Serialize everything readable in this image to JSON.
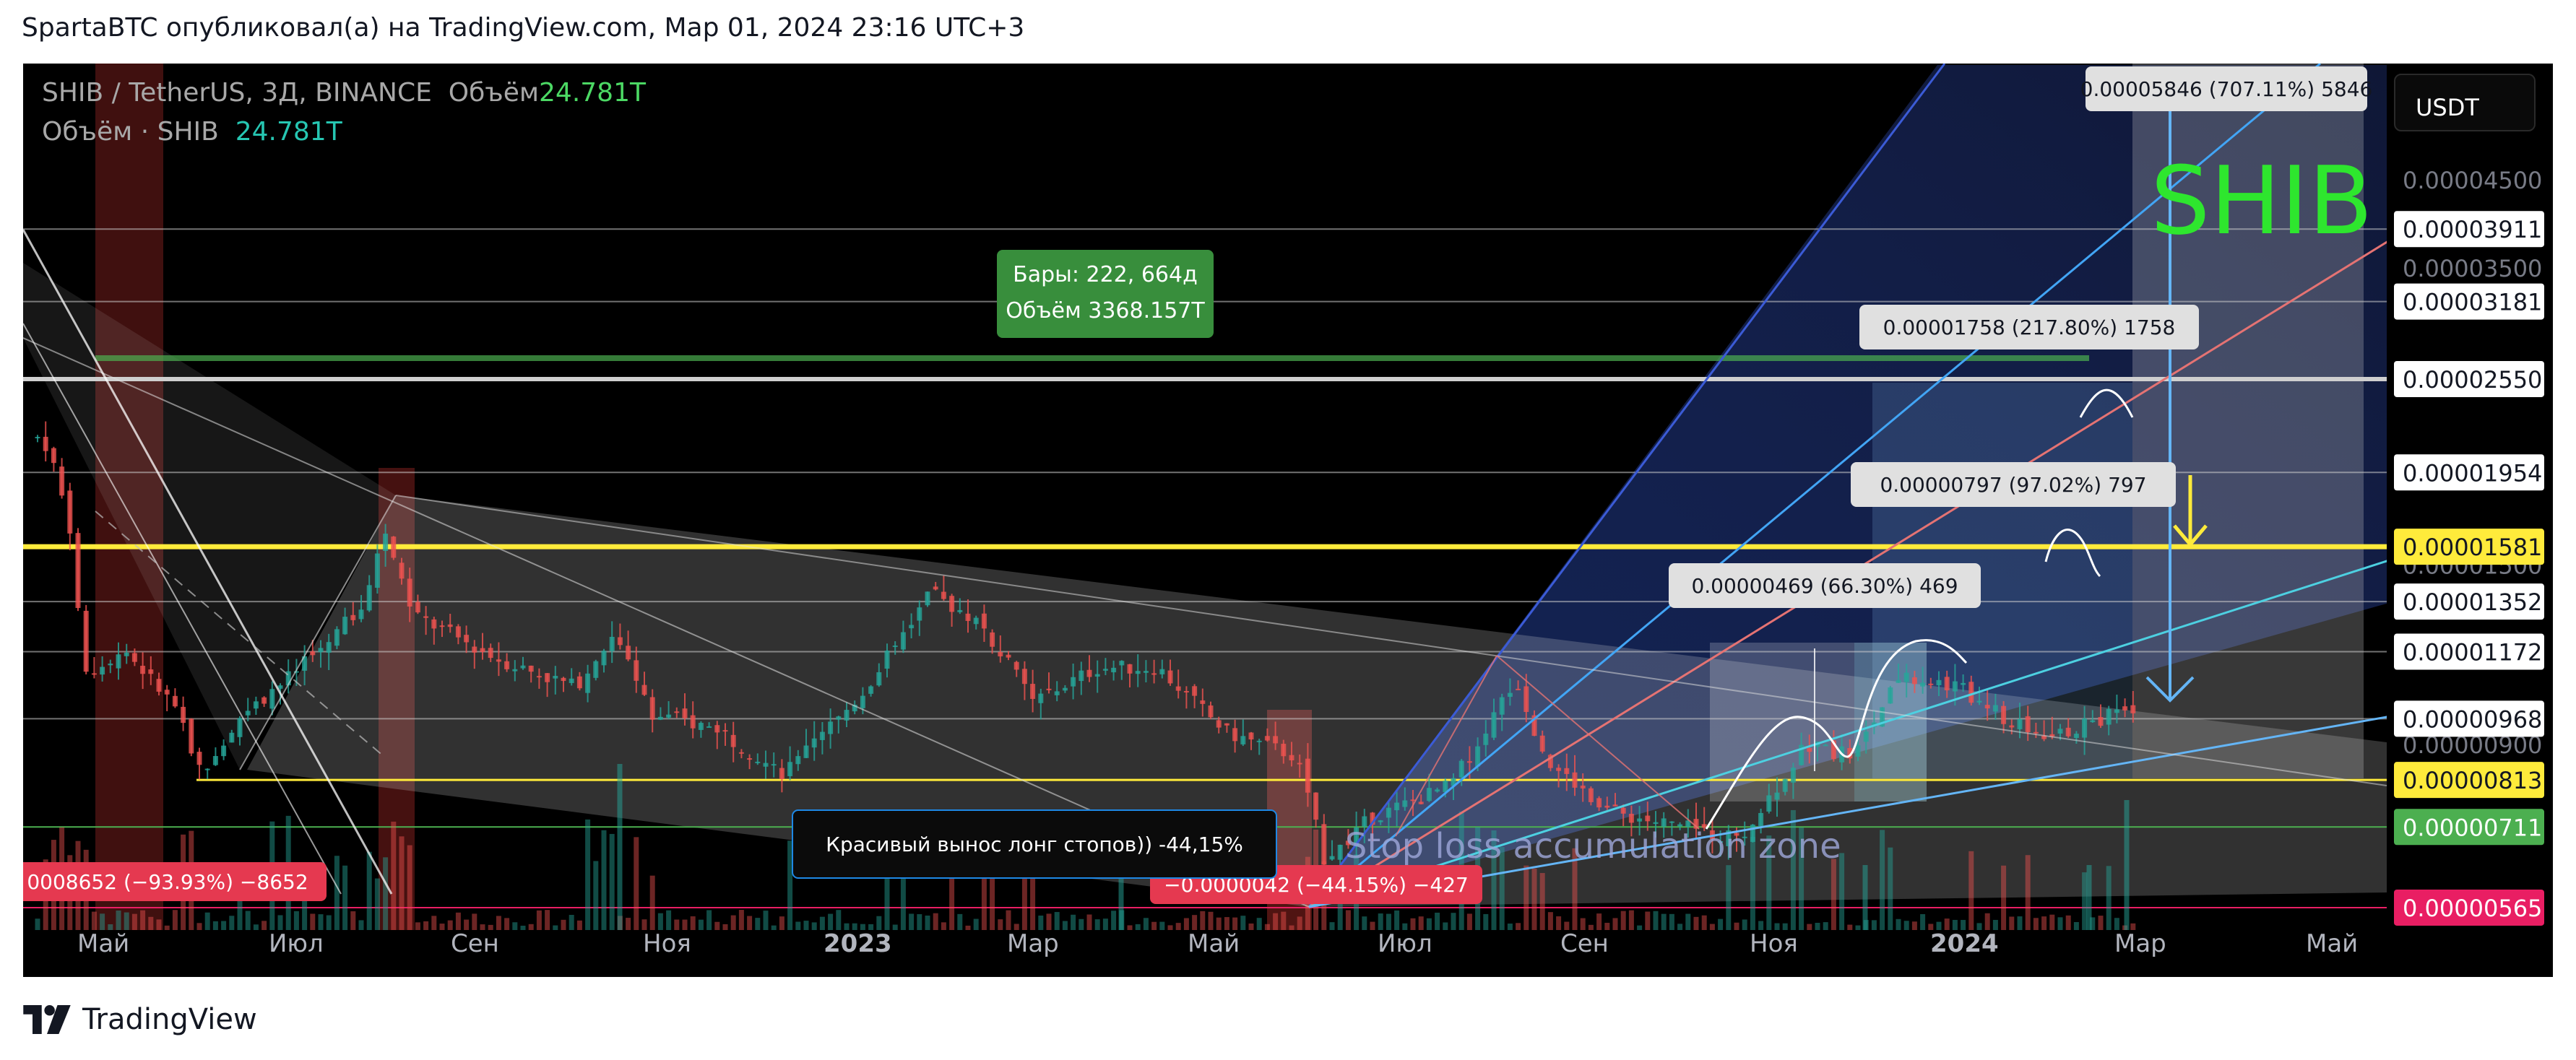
{
  "header": {
    "caption": "SpartaBTC опубликовал(а) на TradingView.com, Мар 01, 2024 23:16 UTC+3"
  },
  "legend": {
    "symbol": "SHIB / TetherUS, 3Д, BINANCE",
    "volume_label": "Объём",
    "volume_value": "24.781T",
    "line2_label": "Объём · SHIB",
    "line2_value": "24.781T"
  },
  "currency_button": "USDT",
  "footer": {
    "brand": "TradingView"
  },
  "colors": {
    "background": "#000000",
    "up_candle": "#26a69a",
    "down_candle": "#ef5350",
    "yellow_level": "#ffeb3b",
    "green_label": "#4caf50",
    "red_label": "#e91e63"
  },
  "chart_data": {
    "type": "candlestick",
    "title": "SHIB / TetherUS, 3Д, BINANCE",
    "y_scale": "log",
    "ylim": [
      5.3e-06,
      6.4e-05
    ],
    "x_ticks": [
      "Май",
      "Июл",
      "Сен",
      "Ноя",
      "2023",
      "Мар",
      "Май",
      "Июл",
      "Сен",
      "Ноя",
      "2024",
      "Мар",
      "Май"
    ],
    "price_axis_ticks": [
      "0.00004500",
      "0.00003500",
      "0.00001500",
      "0.00000900"
    ],
    "price_axis_tick_values": [
      4.5e-05,
      3.5e-05,
      1.5e-05,
      9e-06
    ],
    "level_labels": [
      {
        "text": "0.00003911",
        "value": 3.911e-05,
        "style": "white"
      },
      {
        "text": "0.00003181",
        "value": 3.181e-05,
        "style": "white"
      },
      {
        "text": "0.00002550",
        "value": 2.55e-05,
        "style": "white"
      },
      {
        "text": "0.00001954",
        "value": 1.954e-05,
        "style": "white"
      },
      {
        "text": "0.00001581",
        "value": 1.581e-05,
        "style": "yellow"
      },
      {
        "text": "0.00001352",
        "value": 1.352e-05,
        "style": "white"
      },
      {
        "text": "0.00001172",
        "value": 1.172e-05,
        "style": "white"
      },
      {
        "text": "0.00000968",
        "value": 9.68e-06,
        "style": "white"
      },
      {
        "text": "0.00000813",
        "value": 8.13e-06,
        "style": "yellow"
      },
      {
        "text": "0.00000711",
        "value": 7.11e-06,
        "style": "green"
      },
      {
        "text": "0.00000565",
        "value": 5.65e-06,
        "style": "red"
      }
    ],
    "price_path": [
      {
        "t": "2022-03-25",
        "p": 2.65e-05
      },
      {
        "t": "2022-04-10",
        "p": 2.45e-05
      },
      {
        "t": "2022-05-01",
        "p": 2.1e-05
      },
      {
        "t": "2022-05-08",
        "p": 1.65e-05
      },
      {
        "t": "2022-05-12",
        "p": 1.1e-05
      },
      {
        "t": "2022-05-25",
        "p": 1.18e-05
      },
      {
        "t": "2022-06-10",
        "p": 1e-05
      },
      {
        "t": "2022-06-18",
        "p": 8.3e-06
      },
      {
        "t": "2022-06-30",
        "p": 9.7e-06
      },
      {
        "t": "2022-07-20",
        "p": 1.12e-05
      },
      {
        "t": "2022-08-10",
        "p": 1.35e-05
      },
      {
        "t": "2022-08-15",
        "p": 1.68e-05
      },
      {
        "t": "2022-08-25",
        "p": 1.3e-05
      },
      {
        "t": "2022-09-20",
        "p": 1.15e-05
      },
      {
        "t": "2022-10-15",
        "p": 1.06e-05
      },
      {
        "t": "2022-10-28",
        "p": 1.24e-05
      },
      {
        "t": "2022-11-09",
        "p": 9.8e-06
      },
      {
        "t": "2022-11-30",
        "p": 9.4e-06
      },
      {
        "t": "2022-12-20",
        "p": 8.2e-06
      },
      {
        "t": "2023-01-15",
        "p": 1.05e-05
      },
      {
        "t": "2023-02-05",
        "p": 1.38e-05
      },
      {
        "t": "2023-02-20",
        "p": 1.28e-05
      },
      {
        "t": "2023-03-10",
        "p": 1.02e-05
      },
      {
        "t": "2023-03-30",
        "p": 1.12e-05
      },
      {
        "t": "2023-04-18",
        "p": 1.12e-05
      },
      {
        "t": "2023-05-10",
        "p": 9.3e-06
      },
      {
        "t": "2023-06-01",
        "p": 8.7e-06
      },
      {
        "t": "2023-06-10",
        "p": 6.5e-06
      },
      {
        "t": "2023-06-25",
        "p": 7.3e-06
      },
      {
        "t": "2023-07-20",
        "p": 8e-06
      },
      {
        "t": "2023-08-10",
        "p": 1.08e-05
      },
      {
        "t": "2023-08-17",
        "p": 8.7e-06
      },
      {
        "t": "2023-09-10",
        "p": 7.4e-06
      },
      {
        "t": "2023-10-10",
        "p": 7e-06
      },
      {
        "t": "2023-10-20",
        "p": 6.9e-06
      },
      {
        "t": "2023-11-10",
        "p": 9e-06
      },
      {
        "t": "2023-11-25",
        "p": 8.7e-06
      },
      {
        "t": "2023-12-10",
        "p": 1.1e-05
      },
      {
        "t": "2023-12-28",
        "p": 1.06e-05
      },
      {
        "t": "2024-01-15",
        "p": 9.5e-06
      },
      {
        "t": "2024-01-28",
        "p": 9.2e-06
      },
      {
        "t": "2024-02-15",
        "p": 9.8e-06
      },
      {
        "t": "2024-02-26",
        "p": 1.02e-05
      },
      {
        "t": "2024-02-28",
        "p": 1.25e-05
      },
      {
        "t": "2024-03-01",
        "p": 1.55e-05
      }
    ],
    "annotations": {
      "bars_label": "Бары: 222, 664д",
      "volume_label": "Объём 3368.157T",
      "measure_main": "0.00005846 (707.11%) 5846",
      "measure_1": "0.00001758 (217.80%) 1758",
      "measure_2": "0.00000797 (97.02%) 797",
      "measure_3": "0.00000469 (66.30%) 469",
      "measure_down_left": "0008652 (−93.93%) −8652",
      "measure_down_mid": "−0.0000042",
      "measure_down_mid_tail": "−44.15%) −427",
      "callout": "Красивый вынос лонг стопов)) -44,15%",
      "zone_text": "Stop loss accumulation zone",
      "big_label": "SHIB"
    }
  }
}
